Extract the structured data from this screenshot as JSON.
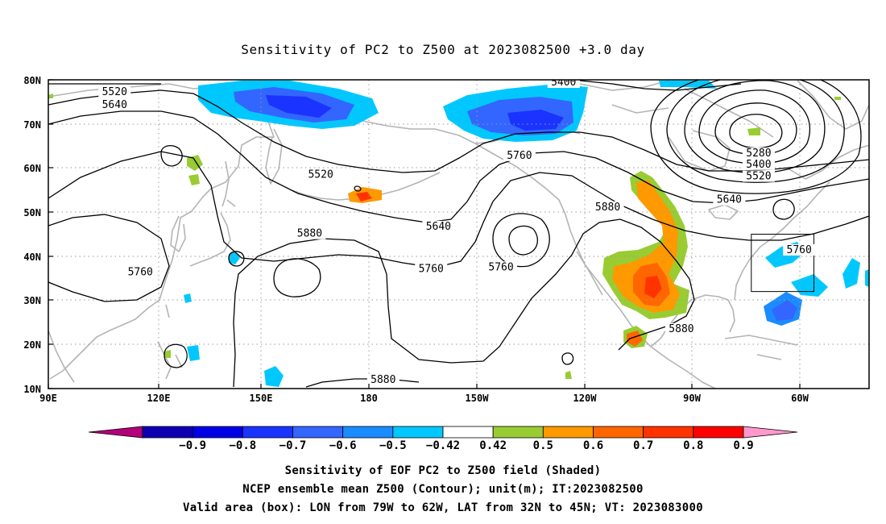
{
  "title": "Sensitivity of PC2 to Z500 at 2023082500 +3.0 day",
  "lat_ticks": [
    "80N",
    "70N",
    "60N",
    "50N",
    "40N",
    "30N",
    "20N",
    "10N"
  ],
  "lon_ticks": [
    "90E",
    "120E",
    "150E",
    "180",
    "150W",
    "120W",
    "90W",
    "60W"
  ],
  "contour_labels": [
    {
      "text": "5400",
      "lon": 230,
      "lat": 78.9
    },
    {
      "text": "5520",
      "lon": 108,
      "lat": 76.7
    },
    {
      "text": "5640",
      "lon": 108,
      "lat": 73.8
    },
    {
      "text": "5280",
      "lon": 283,
      "lat": 62.8
    },
    {
      "text": "5400",
      "lon": 283,
      "lat": 60.3
    },
    {
      "text": "5520",
      "lon": 283,
      "lat": 57.6
    },
    {
      "text": "5760",
      "lon": 218,
      "lat": 62.3
    },
    {
      "text": "5520",
      "lon": 164,
      "lat": 58.0
    },
    {
      "text": "5640",
      "lon": 275,
      "lat": 52.3
    },
    {
      "text": "5880",
      "lon": 242,
      "lat": 50.6
    },
    {
      "text": "5640",
      "lon": 196,
      "lat": 46.2
    },
    {
      "text": "5880",
      "lon": 161,
      "lat": 44.6
    },
    {
      "text": "5760",
      "lon": 294,
      "lat": 40.9
    },
    {
      "text": "5760",
      "lon": 115,
      "lat": 35.9
    },
    {
      "text": "5760",
      "lon": 194,
      "lat": 36.6
    },
    {
      "text": "5760",
      "lon": 213,
      "lat": 37.0
    },
    {
      "text": "5880",
      "lon": 262,
      "lat": 23.0
    },
    {
      "text": "5880",
      "lon": 181,
      "lat": 11.5
    }
  ],
  "colorbar": {
    "colors": [
      "#b4007a",
      "#0d00b0",
      "#0000e6",
      "#1a33ff",
      "#3366ff",
      "#1a8cff",
      "#00c8ff",
      "#ffffff",
      "#99cc33",
      "#ff9900",
      "#ff6600",
      "#ff3300",
      "#ff0000",
      "#ff99cc"
    ],
    "labels": [
      "−0.9",
      "−0.8",
      "−0.7",
      "−0.6",
      "−0.5",
      "−0.42",
      "0.42",
      "0.5",
      "0.6",
      "0.7",
      "0.8",
      "0.9"
    ]
  },
  "captions": [
    "Sensitivity of EOF PC2 to Z500 field (Shaded)",
    "NCEP ensemble mean Z500 (Contour); unit(m); IT:2023082500",
    "Valid area (box): LON from 79W to 62W, LAT from 32N to 45N; VT: 2023083000"
  ],
  "valid_area": {
    "lon_min": 281,
    "lon_max": 298,
    "lat_min": 32,
    "lat_max": 45
  },
  "map_extent": {
    "lon_min": 90,
    "lon_max": 313,
    "lat_min": 10,
    "lat_max": 80
  }
}
